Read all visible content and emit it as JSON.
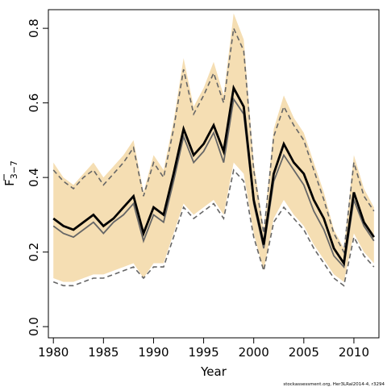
{
  "chart_data": {
    "type": "line",
    "xlabel": "Year",
    "ylabel_main": "F",
    "ylabel_sub": "3−7",
    "footer": "stockassessment.org, Her3LRaI2014-4, r3294",
    "xlim": [
      1979.5,
      2012.5
    ],
    "ylim": [
      -0.03,
      0.85
    ],
    "x_ticks": [
      1980,
      1985,
      1990,
      1995,
      2000,
      2005,
      2010
    ],
    "y_ticks": [
      0.0,
      0.2,
      0.4,
      0.6,
      0.8
    ],
    "y_tick_labels": [
      "0.0",
      "0.2",
      "0.4",
      "0.6",
      "0.8"
    ],
    "colors": {
      "band": "#f5deb3",
      "estimate": "#000000",
      "secondary": "#666666",
      "dashed": "#666666"
    },
    "years": [
      1980,
      1981,
      1982,
      1983,
      1984,
      1985,
      1986,
      1987,
      1988,
      1989,
      1990,
      1991,
      1992,
      1993,
      1994,
      1995,
      1996,
      1997,
      1998,
      1999,
      2000,
      2001,
      2002,
      2003,
      2004,
      2005,
      2006,
      2007,
      2008,
      2009,
      2010,
      2011,
      2012
    ],
    "series": [
      {
        "role": "band_upper",
        "values": [
          0.44,
          0.4,
          0.38,
          0.41,
          0.44,
          0.4,
          0.43,
          0.46,
          0.5,
          0.36,
          0.46,
          0.42,
          0.55,
          0.72,
          0.59,
          0.64,
          0.71,
          0.62,
          0.84,
          0.77,
          0.44,
          0.26,
          0.53,
          0.62,
          0.56,
          0.52,
          0.44,
          0.36,
          0.26,
          0.21,
          0.46,
          0.37,
          0.32
        ]
      },
      {
        "role": "band_lower",
        "values": [
          0.13,
          0.12,
          0.12,
          0.13,
          0.14,
          0.14,
          0.15,
          0.16,
          0.17,
          0.13,
          0.17,
          0.17,
          0.25,
          0.33,
          0.3,
          0.32,
          0.34,
          0.3,
          0.44,
          0.41,
          0.25,
          0.15,
          0.29,
          0.34,
          0.3,
          0.27,
          0.22,
          0.18,
          0.14,
          0.12,
          0.25,
          0.2,
          0.17
        ]
      },
      {
        "role": "estimate",
        "values": [
          0.29,
          0.27,
          0.26,
          0.28,
          0.3,
          0.27,
          0.29,
          0.32,
          0.35,
          0.25,
          0.32,
          0.3,
          0.41,
          0.53,
          0.46,
          0.49,
          0.54,
          0.47,
          0.64,
          0.59,
          0.34,
          0.22,
          0.41,
          0.49,
          0.44,
          0.41,
          0.34,
          0.29,
          0.21,
          0.17,
          0.36,
          0.28,
          0.24
        ]
      },
      {
        "role": "secondary",
        "values": [
          0.27,
          0.25,
          0.24,
          0.26,
          0.28,
          0.25,
          0.28,
          0.3,
          0.33,
          0.23,
          0.3,
          0.28,
          0.39,
          0.51,
          0.44,
          0.47,
          0.52,
          0.44,
          0.61,
          0.57,
          0.33,
          0.21,
          0.39,
          0.46,
          0.42,
          0.38,
          0.31,
          0.26,
          0.19,
          0.16,
          0.34,
          0.27,
          0.23
        ]
      },
      {
        "role": "dashed_upper",
        "values": [
          0.42,
          0.39,
          0.37,
          0.4,
          0.42,
          0.38,
          0.41,
          0.44,
          0.48,
          0.35,
          0.44,
          0.4,
          0.53,
          0.69,
          0.57,
          0.62,
          0.68,
          0.6,
          0.8,
          0.74,
          0.42,
          0.25,
          0.51,
          0.59,
          0.54,
          0.5,
          0.42,
          0.34,
          0.25,
          0.2,
          0.44,
          0.35,
          0.31
        ]
      },
      {
        "role": "dashed_lower",
        "values": [
          0.12,
          0.11,
          0.11,
          0.12,
          0.13,
          0.13,
          0.14,
          0.15,
          0.16,
          0.13,
          0.16,
          0.16,
          0.24,
          0.32,
          0.29,
          0.31,
          0.33,
          0.29,
          0.42,
          0.39,
          0.24,
          0.15,
          0.28,
          0.32,
          0.29,
          0.26,
          0.21,
          0.17,
          0.13,
          0.11,
          0.24,
          0.19,
          0.16
        ]
      }
    ]
  }
}
